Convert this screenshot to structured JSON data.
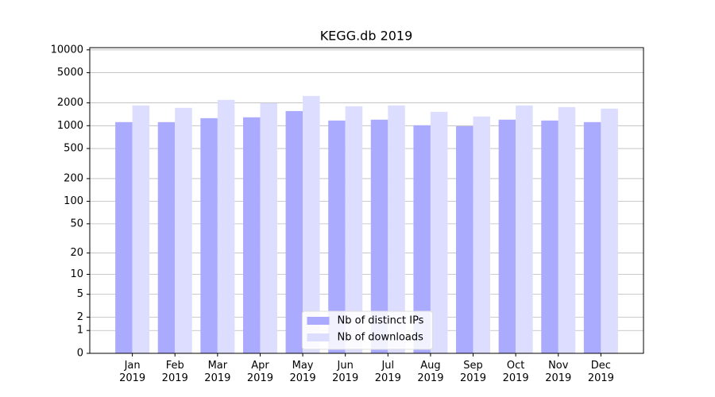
{
  "chart_data": {
    "type": "bar",
    "title": "KEGG.db 2019",
    "categories": [
      "Jan\n2019",
      "Feb\n2019",
      "Mar\n2019",
      "Apr\n2019",
      "May\n2019",
      "Jun\n2019",
      "Jul\n2019",
      "Aug\n2019",
      "Sep\n2019",
      "Oct\n2019",
      "Nov\n2019",
      "Dec\n2019"
    ],
    "series": [
      {
        "name": "Nb of distinct IPs",
        "color": "#aaaaff",
        "values": [
          1115,
          1115,
          1257,
          1290,
          1560,
          1170,
          1200,
          1012,
          985,
          1200,
          1170,
          1115
        ]
      },
      {
        "name": "Nb of downloads",
        "color": "#ddddff",
        "values": [
          1850,
          1720,
          2190,
          1985,
          2470,
          1805,
          1850,
          1525,
          1320,
          1850,
          1760,
          1680
        ]
      }
    ],
    "yscale": "log1p",
    "ylim": [
      0,
      10700
    ],
    "yticks": [
      0,
      1,
      2,
      5,
      10,
      20,
      50,
      100,
      200,
      500,
      1000,
      2000,
      5000,
      10000
    ],
    "grid": true,
    "legend": "lower center"
  }
}
